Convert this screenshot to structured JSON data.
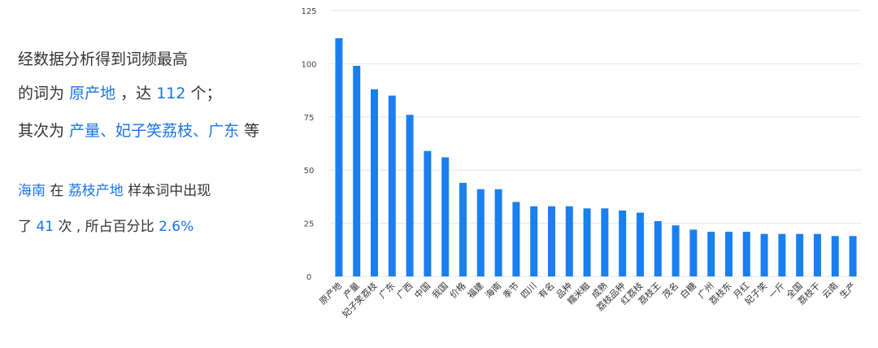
{
  "summary": {
    "line1": "经数据分析得到词频最高",
    "line2_prefix": "的词为",
    "top_word": "原产地",
    "line2_mid": "，达",
    "top_count": "112",
    "line2_suffix": "个；",
    "line3_prefix": "其次为",
    "next_words": "产量、妃子笑荔枝、广东",
    "line3_suffix": "等",
    "line4_word": "海南",
    "line4_mid": "在",
    "line4_category": "荔枝产地",
    "line4_suffix": "样本词中出现",
    "line5_prefix": "了",
    "line5_count": "41",
    "line5_mid": "次 , 所占百分比",
    "line5_percent": "2.6%"
  },
  "colors": {
    "bar": "#1a7ff0",
    "highlight": "#1a73e8",
    "grid": "#e6e6e6"
  },
  "chart_data": {
    "type": "bar",
    "categories": [
      "原产地",
      "产量",
      "妃子笑荔枝",
      "广东",
      "广西",
      "中国",
      "我国",
      "价格",
      "福建",
      "海南",
      "季节",
      "四川",
      "有名",
      "品种",
      "糯米糍",
      "成熟",
      "荔枝品种",
      "红荔枝",
      "荔枝王",
      "茂名",
      "白糖",
      "广州",
      "荔枝东",
      "月红",
      "妃子笑",
      "一斤",
      "全国",
      "荔枝干",
      "云南",
      "生产"
    ],
    "values": [
      112,
      99,
      88,
      85,
      76,
      59,
      56,
      44,
      41,
      41,
      35,
      33,
      33,
      33,
      32,
      32,
      31,
      30,
      26,
      24,
      22,
      21,
      21,
      21,
      20,
      20,
      20,
      20,
      19,
      19
    ],
    "yticks": [
      0,
      25,
      50,
      75,
      100,
      125
    ],
    "ylim": [
      0,
      125
    ],
    "grid": true,
    "title": "",
    "xlabel": "",
    "ylabel": ""
  }
}
